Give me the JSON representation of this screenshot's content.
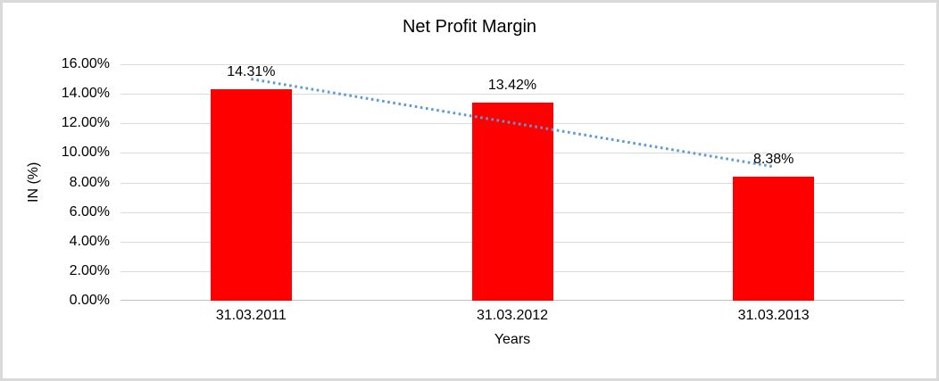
{
  "chart_data": {
    "type": "bar",
    "title": "Net Profit Margin",
    "categories": [
      "31.03.2011",
      "31.03.2012",
      "31.03.2013"
    ],
    "values": [
      14.31,
      13.42,
      8.38
    ],
    "data_labels": [
      "14.31%",
      "13.42%",
      "8.38%"
    ],
    "xlabel": "Years",
    "ylabel": "IN (%)",
    "ylim": [
      0,
      16
    ],
    "y_tick_step": 2,
    "y_tick_labels": [
      "0.00%",
      "2.00%",
      "4.00%",
      "6.00%",
      "8.00%",
      "10.00%",
      "12.00%",
      "14.00%",
      "16.00%"
    ],
    "grid": true,
    "legend": "none",
    "bar_color": "#FF0000",
    "gridline_color": "#d9d9d9",
    "axis_line_color": "#c0c0c0",
    "text_color": "#000000",
    "frame_border_color": "#d9d9d9",
    "trendline": {
      "type": "linear",
      "style": "dotted",
      "color": "#5B9BD5",
      "start_value": 15.0,
      "end_value": 9.07
    }
  }
}
